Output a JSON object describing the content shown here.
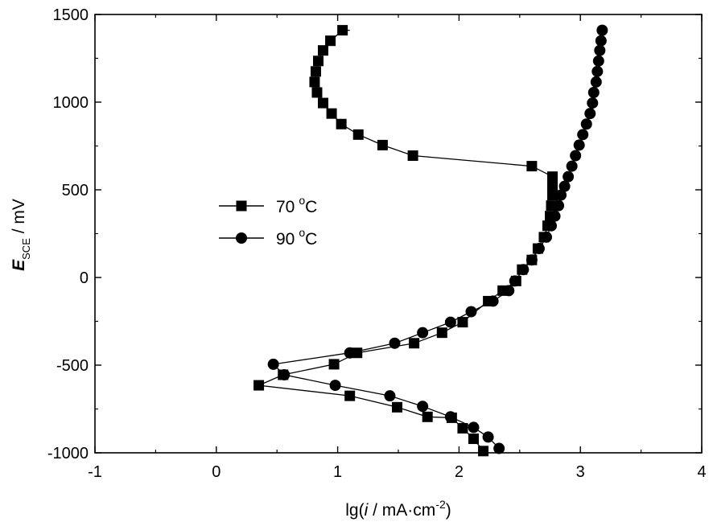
{
  "chart_data": {
    "type": "line",
    "xlabel": {
      "prefix": "lg(",
      "var": "i",
      "unit": " / mA·cm",
      "exp": "-2",
      "suffix": ")"
    },
    "ylabel": {
      "var": "E",
      "sub": "SCE",
      "unit": " / mV"
    },
    "xlim": [
      -1,
      4
    ],
    "ylim": [
      -1000,
      1500
    ],
    "xticks": [
      "-1",
      "0",
      "1",
      "2",
      "3",
      "4"
    ],
    "yticks": [
      "-1000",
      "-500",
      "0",
      "500",
      "1000",
      "1500"
    ],
    "legend_position": "center-left",
    "grid": false,
    "series": [
      {
        "name": "70 °C",
        "legend_number": "70",
        "legend_unit": "C",
        "legend_deg": "o",
        "marker": "square",
        "points": [
          [
            2.2,
            -990
          ],
          [
            2.12,
            -920
          ],
          [
            2.03,
            -860
          ],
          [
            1.94,
            -800
          ],
          [
            1.74,
            -795
          ],
          [
            1.49,
            -740
          ],
          [
            1.1,
            -675
          ],
          [
            0.35,
            -615
          ],
          [
            0.55,
            -555
          ],
          [
            0.97,
            -495
          ],
          [
            1.16,
            -430
          ],
          [
            1.63,
            -375
          ],
          [
            1.86,
            -315
          ],
          [
            2.03,
            -255
          ],
          [
            2.24,
            -135
          ],
          [
            2.36,
            -75
          ],
          [
            2.47,
            -20
          ],
          [
            2.52,
            45
          ],
          [
            2.6,
            100
          ],
          [
            2.65,
            165
          ],
          [
            2.7,
            230
          ],
          [
            2.73,
            295
          ],
          [
            2.75,
            350
          ],
          [
            2.76,
            410
          ],
          [
            2.77,
            470
          ],
          [
            2.77,
            520
          ],
          [
            2.77,
            575
          ],
          [
            2.6,
            635
          ],
          [
            1.62,
            695
          ],
          [
            1.37,
            755
          ],
          [
            1.17,
            815
          ],
          [
            1.03,
            875
          ],
          [
            0.95,
            935
          ],
          [
            0.88,
            995
          ],
          [
            0.83,
            1055
          ],
          [
            0.81,
            1115
          ],
          [
            0.82,
            1175
          ],
          [
            0.84,
            1235
          ],
          [
            0.88,
            1295
          ],
          [
            0.94,
            1350
          ],
          [
            1.04,
            1410
          ],
          [
            1.1,
            1410
          ]
        ]
      },
      {
        "name": "90 °C",
        "legend_number": "90",
        "legend_unit": "C",
        "legend_deg": "o",
        "marker": "circle",
        "points": [
          [
            2.33,
            -975
          ],
          [
            2.24,
            -910
          ],
          [
            2.12,
            -855
          ],
          [
            1.93,
            -795
          ],
          [
            1.7,
            -735
          ],
          [
            1.43,
            -675
          ],
          [
            0.98,
            -615
          ],
          [
            0.56,
            -555
          ],
          [
            0.47,
            -495
          ],
          [
            1.1,
            -430
          ],
          [
            1.47,
            -375
          ],
          [
            1.7,
            -315
          ],
          [
            1.93,
            -255
          ],
          [
            2.1,
            -195
          ],
          [
            2.28,
            -135
          ],
          [
            2.41,
            -75
          ],
          [
            2.46,
            -20
          ],
          [
            2.53,
            45
          ],
          [
            2.6,
            100
          ],
          [
            2.66,
            165
          ],
          [
            2.72,
            230
          ],
          [
            2.76,
            295
          ],
          [
            2.79,
            350
          ],
          [
            2.82,
            410
          ],
          [
            2.84,
            470
          ],
          [
            2.87,
            520
          ],
          [
            2.9,
            575
          ],
          [
            2.93,
            635
          ],
          [
            2.96,
            695
          ],
          [
            2.99,
            755
          ],
          [
            3.02,
            815
          ],
          [
            3.05,
            875
          ],
          [
            3.08,
            935
          ],
          [
            3.1,
            995
          ],
          [
            3.11,
            1055
          ],
          [
            3.13,
            1115
          ],
          [
            3.14,
            1175
          ],
          [
            3.15,
            1235
          ],
          [
            3.16,
            1295
          ],
          [
            3.17,
            1350
          ],
          [
            3.18,
            1410
          ]
        ]
      }
    ]
  }
}
